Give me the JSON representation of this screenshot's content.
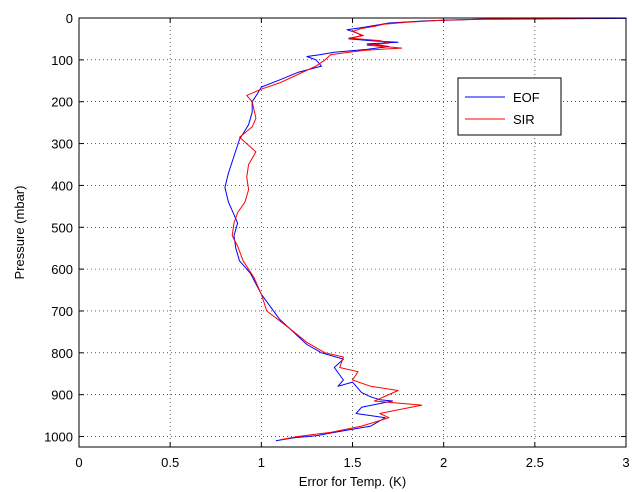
{
  "chart_data": {
    "type": "line",
    "title": "",
    "xlabel": "Error for Temp. (K)",
    "ylabel": "Pressure (mbar)",
    "xlim": [
      0,
      3
    ],
    "ylim": [
      1025,
      0
    ],
    "y_reversed": true,
    "grid": true,
    "legend_position": "upper-right",
    "x_ticks": [
      0,
      0.5,
      1,
      1.5,
      2,
      2.5,
      3
    ],
    "x_tick_labels": [
      "0",
      "0.5",
      "1",
      "1.5",
      "2",
      "2.5",
      "3"
    ],
    "y_ticks": [
      0,
      100,
      200,
      300,
      400,
      500,
      600,
      700,
      800,
      900,
      1000
    ],
    "y_tick_labels": [
      "0",
      "100",
      "200",
      "300",
      "400",
      "500",
      "600",
      "700",
      "800",
      "900",
      "1000"
    ],
    "series": [
      {
        "name": "EOF",
        "color": "#0000ff",
        "points": [
          [
            3.0,
            1
          ],
          [
            2.2,
            3
          ],
          [
            1.9,
            7
          ],
          [
            1.7,
            12
          ],
          [
            1.62,
            18
          ],
          [
            1.55,
            23
          ],
          [
            1.47,
            28
          ],
          [
            1.52,
            35
          ],
          [
            1.55,
            42
          ],
          [
            1.48,
            50
          ],
          [
            1.62,
            55
          ],
          [
            1.75,
            58
          ],
          [
            1.58,
            62
          ],
          [
            1.7,
            68
          ],
          [
            1.58,
            75
          ],
          [
            1.4,
            82
          ],
          [
            1.32,
            88
          ],
          [
            1.25,
            92
          ],
          [
            1.3,
            100
          ],
          [
            1.33,
            115
          ],
          [
            1.2,
            130
          ],
          [
            1.1,
            148
          ],
          [
            1.0,
            165
          ],
          [
            0.98,
            180
          ],
          [
            0.95,
            200
          ],
          [
            0.95,
            225
          ],
          [
            0.93,
            255
          ],
          [
            0.88,
            290
          ],
          [
            0.85,
            330
          ],
          [
            0.82,
            370
          ],
          [
            0.8,
            405
          ],
          [
            0.82,
            440
          ],
          [
            0.85,
            470
          ],
          [
            0.87,
            490
          ],
          [
            0.85,
            520
          ],
          [
            0.86,
            550
          ],
          [
            0.88,
            580
          ],
          [
            0.94,
            610
          ],
          [
            1.0,
            660
          ],
          [
            1.1,
            720
          ],
          [
            1.25,
            780
          ],
          [
            1.33,
            800
          ],
          [
            1.45,
            815
          ],
          [
            1.4,
            835
          ],
          [
            1.45,
            865
          ],
          [
            1.42,
            880
          ],
          [
            1.5,
            870
          ],
          [
            1.55,
            895
          ],
          [
            1.6,
            905
          ],
          [
            1.65,
            912
          ],
          [
            1.72,
            915
          ],
          [
            1.55,
            930
          ],
          [
            1.52,
            945
          ],
          [
            1.68,
            955
          ],
          [
            1.6,
            975
          ],
          [
            1.4,
            990
          ],
          [
            1.3,
            998
          ],
          [
            1.18,
            1003
          ],
          [
            1.08,
            1010
          ]
        ]
      },
      {
        "name": "SIR",
        "color": "#ff0000",
        "points": [
          [
            3.0,
            0
          ],
          [
            2.3,
            2
          ],
          [
            2.0,
            5
          ],
          [
            1.8,
            10
          ],
          [
            1.67,
            15
          ],
          [
            1.62,
            20
          ],
          [
            1.55,
            25
          ],
          [
            1.5,
            32
          ],
          [
            1.56,
            42
          ],
          [
            1.48,
            48
          ],
          [
            1.65,
            54
          ],
          [
            1.7,
            60
          ],
          [
            1.58,
            65
          ],
          [
            1.72,
            70
          ],
          [
            1.77,
            72
          ],
          [
            1.57,
            77
          ],
          [
            1.48,
            82
          ],
          [
            1.38,
            88
          ],
          [
            1.35,
            100
          ],
          [
            1.3,
            115
          ],
          [
            1.2,
            135
          ],
          [
            1.1,
            155
          ],
          [
            1.0,
            170
          ],
          [
            0.92,
            185
          ],
          [
            0.95,
            200
          ],
          [
            0.97,
            240
          ],
          [
            0.95,
            260
          ],
          [
            0.88,
            285
          ],
          [
            0.92,
            300
          ],
          [
            0.97,
            320
          ],
          [
            0.93,
            350
          ],
          [
            0.92,
            380
          ],
          [
            0.93,
            410
          ],
          [
            0.91,
            440
          ],
          [
            0.87,
            465
          ],
          [
            0.85,
            490
          ],
          [
            0.84,
            520
          ],
          [
            0.87,
            545
          ],
          [
            0.9,
            580
          ],
          [
            0.96,
            620
          ],
          [
            1.0,
            660
          ],
          [
            1.03,
            700
          ],
          [
            1.15,
            740
          ],
          [
            1.25,
            775
          ],
          [
            1.35,
            800
          ],
          [
            1.45,
            810
          ],
          [
            1.43,
            835
          ],
          [
            1.53,
            845
          ],
          [
            1.5,
            865
          ],
          [
            1.6,
            880
          ],
          [
            1.75,
            890
          ],
          [
            1.62,
            915
          ],
          [
            1.88,
            925
          ],
          [
            1.65,
            945
          ],
          [
            1.7,
            955
          ],
          [
            1.55,
            975
          ],
          [
            1.38,
            990
          ],
          [
            1.2,
            1000
          ],
          [
            1.1,
            1008
          ]
        ]
      }
    ]
  }
}
